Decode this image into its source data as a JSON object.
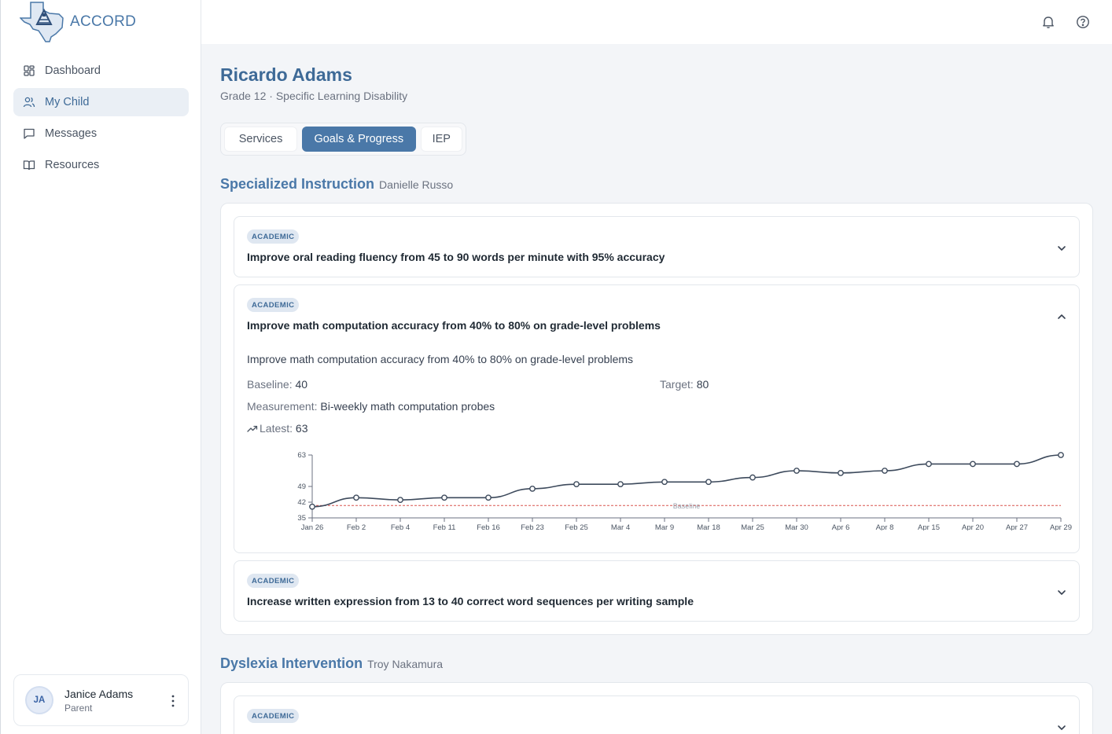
{
  "brand": {
    "name": "ACCORD"
  },
  "sidebar": {
    "items": [
      {
        "label": "Dashboard",
        "icon": "dashboard-icon"
      },
      {
        "label": "My Child",
        "icon": "users-icon",
        "active": true
      },
      {
        "label": "Messages",
        "icon": "message-icon"
      },
      {
        "label": "Resources",
        "icon": "book-icon"
      }
    ]
  },
  "user": {
    "initials": "JA",
    "name": "Janice Adams",
    "role": "Parent"
  },
  "topbar": {
    "icons": [
      "bell-icon",
      "help-icon"
    ]
  },
  "student": {
    "name": "Ricardo Adams",
    "subtitle": "Grade 12 · Specific Learning Disability"
  },
  "tabs": [
    {
      "label": "Services"
    },
    {
      "label": "Goals & Progress",
      "active": true
    },
    {
      "label": "IEP"
    }
  ],
  "sections": [
    {
      "title": "Specialized Instruction",
      "provider": "Danielle Russo",
      "goals": [
        {
          "category": "ACADEMIC",
          "title": "Improve oral reading fluency from 45 to 90 words per minute with 95% accuracy",
          "expanded": false
        },
        {
          "category": "ACADEMIC",
          "title": "Improve math computation accuracy from 40% to 80% on grade-level problems",
          "expanded": true,
          "description": "Improve math computation accuracy from 40% to 80% on grade-level problems",
          "baseline_label": "Baseline:",
          "baseline": "40",
          "target_label": "Target:",
          "target": "80",
          "measurement_label": "Measurement:",
          "measurement": "Bi-weekly math computation probes",
          "latest_label": "Latest:",
          "latest": "63"
        },
        {
          "category": "ACADEMIC",
          "title": "Increase written expression from 13 to 40 correct word sequences per writing sample",
          "expanded": false
        }
      ]
    },
    {
      "title": "Dyslexia Intervention",
      "provider": "Troy Nakamura",
      "goals": [
        {
          "category": "ACADEMIC",
          "title": "",
          "expanded": false
        }
      ]
    }
  ],
  "chart_data": {
    "type": "line",
    "x": [
      "Jan 26",
      "Feb 2",
      "Feb 4",
      "Feb 11",
      "Feb 16",
      "Feb 23",
      "Feb 25",
      "Mar 4",
      "Mar 9",
      "Mar 18",
      "Mar 25",
      "Mar 30",
      "Apr 6",
      "Apr 8",
      "Apr 15",
      "Apr 20",
      "Apr 27",
      "Apr 29"
    ],
    "series": [
      {
        "values": [
          40,
          44,
          43,
          44,
          44,
          48,
          50,
          50,
          51,
          51,
          53,
          56,
          55,
          56,
          59,
          59,
          59,
          63
        ]
      }
    ],
    "yticks": [
      35,
      42,
      49,
      63
    ],
    "ylim": [
      35,
      63
    ],
    "reference_line": {
      "label": "Baseline",
      "value": 40.5,
      "color": "#d9534f"
    },
    "line_color": "#3d4a5c",
    "grid": false
  },
  "colors": {
    "accent": "#4a78a8",
    "badge_bg": "#dfe7f1",
    "baseline_line": "#d9534f"
  }
}
